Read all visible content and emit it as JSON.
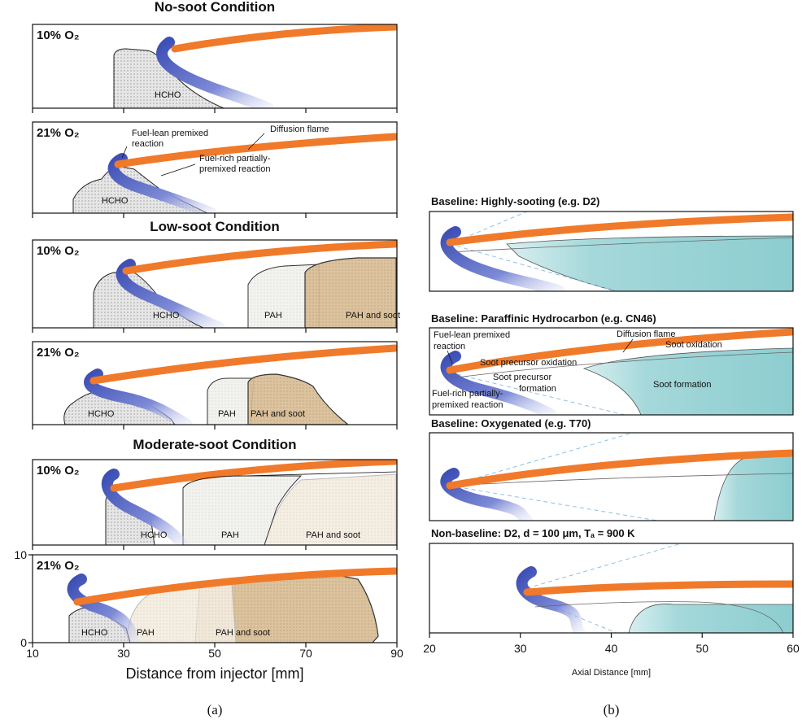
{
  "panel_a": {
    "caption": "(a)",
    "x_axis_label": "Distance from injector [mm]",
    "x_ticks": [
      10,
      30,
      50,
      70,
      90
    ],
    "y_ticks": [
      0,
      10
    ],
    "groups": [
      {
        "title": "No-soot Condition",
        "panels": [
          {
            "oxygen": "10% O₂",
            "regions": [
              "HCHO"
            ]
          },
          {
            "oxygen": "21% O₂",
            "regions": [
              "HCHO"
            ],
            "annotations": [
              {
                "lines": [
                  "Fuel-lean premixed",
                  "reaction"
                ]
              },
              {
                "lines": [
                  "Diffusion flame"
                ]
              },
              {
                "lines": [
                  "Fuel-rich partially-",
                  "premixed reaction"
                ]
              }
            ]
          }
        ]
      },
      {
        "title": "Low-soot Condition",
        "panels": [
          {
            "oxygen": "10% O₂",
            "regions": [
              "HCHO",
              "PAH",
              "PAH and soot"
            ]
          },
          {
            "oxygen": "21% O₂",
            "regions": [
              "HCHO",
              "PAH",
              "PAH and soot"
            ]
          }
        ]
      },
      {
        "title": "Moderate-soot Condition",
        "panels": [
          {
            "oxygen": "10% O₂",
            "regions": [
              "HCHO",
              "PAH",
              "PAH and soot"
            ]
          },
          {
            "oxygen": "21% O₂",
            "regions": [
              "HCHO",
              "PAH",
              "PAH and soot"
            ]
          }
        ]
      }
    ]
  },
  "panel_b": {
    "caption": "(b)",
    "x_axis_label": "Axial Distance [mm]",
    "x_ticks": [
      20,
      30,
      40,
      50,
      60
    ],
    "panels": [
      {
        "title": "Baseline: Highly-sooting (e.g. D2)"
      },
      {
        "title": "Baseline: Paraffinic Hydrocarbon (e.g. CN46)",
        "annotations": [
          {
            "lines": [
              "Fuel-lean premixed",
              "reaction"
            ]
          },
          {
            "lines": [
              "Diffusion flame"
            ]
          },
          {
            "lines": [
              "Soot oxidation"
            ]
          },
          {
            "lines": [
              "Soot precursor oxidation"
            ]
          },
          {
            "lines": [
              "Soot  precursor",
              "formation"
            ]
          },
          {
            "lines": [
              "Soot formation"
            ]
          },
          {
            "lines": [
              "Fuel-rich partially-",
              "premixed reaction"
            ]
          }
        ]
      },
      {
        "title": "Baseline: Oxygenated (e.g. T70)"
      },
      {
        "title": "Non-baseline: D2, d = 100 μm, Tₐ = 900 K"
      }
    ]
  }
}
